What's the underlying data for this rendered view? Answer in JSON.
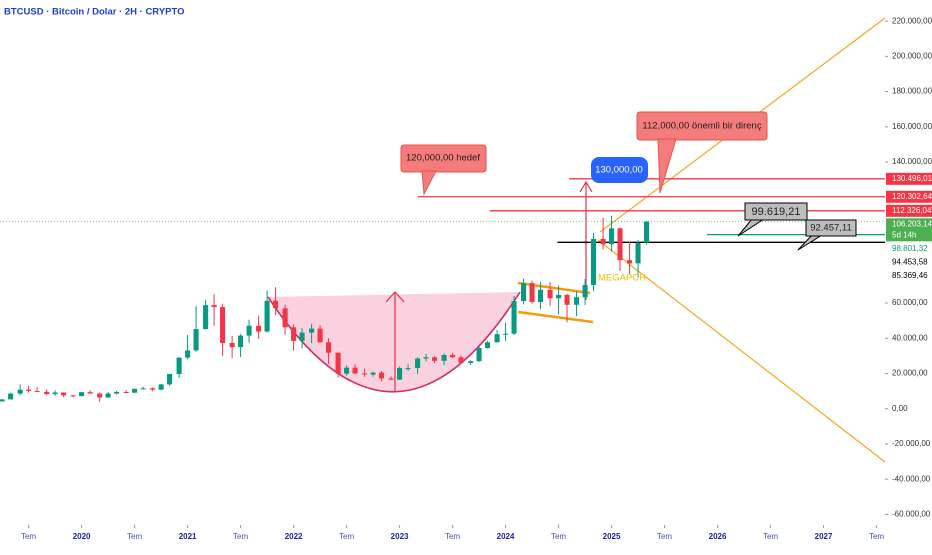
{
  "chart_data": {
    "type": "candlestick",
    "title": "BTCUSD · Bitcoin / Dolar · 2H · CRYPTO",
    "up_color": "#089981",
    "down_color": "#f23645",
    "x": [
      2019.25,
      2019.33,
      2019.42,
      2019.5,
      2019.58,
      2019.67,
      2019.75,
      2019.83,
      2019.92,
      2020,
      2020.08,
      2020.17,
      2020.25,
      2020.33,
      2020.42,
      2020.5,
      2020.58,
      2020.67,
      2020.75,
      2020.83,
      2020.92,
      2021,
      2021.08,
      2021.17,
      2021.25,
      2021.33,
      2021.42,
      2021.5,
      2021.58,
      2021.67,
      2021.75,
      2021.83,
      2021.92,
      2022,
      2022.08,
      2022.17,
      2022.25,
      2022.33,
      2022.42,
      2022.5,
      2022.58,
      2022.67,
      2022.75,
      2022.83,
      2022.92,
      2023,
      2023.08,
      2023.17,
      2023.25,
      2023.33,
      2023.42,
      2023.5,
      2023.58,
      2023.67,
      2023.75,
      2023.83,
      2023.92,
      2024,
      2024.08,
      2024.17,
      2024.25,
      2024.33,
      2024.42,
      2024.5,
      2024.58,
      2024.67,
      2024.75,
      2024.83,
      2024.92,
      2025,
      2025.08,
      2025.17,
      2025.25,
      2025.33
    ],
    "open": [
      4100,
      5300,
      8600,
      10800,
      10100,
      9600,
      8300,
      9200,
      7600,
      7200,
      9400,
      8600,
      6400,
      8600,
      9500,
      9100,
      11300,
      11600,
      10800,
      13800,
      19700,
      29000,
      33100,
      45200,
      58800,
      57700,
      37300,
      35000,
      41500,
      47100,
      43800,
      61300,
      57000,
      46200,
      38500,
      43200,
      45500,
      37700,
      31800,
      19900,
      23300,
      20000,
      19400,
      20500,
      17200,
      16500,
      23100,
      23100,
      28500,
      29200,
      27200,
      30500,
      29200,
      26000,
      27000,
      34500,
      37700,
      42300,
      42600,
      61100,
      71300,
      60600,
      67500,
      62700,
      64600,
      59000,
      63300,
      70200,
      96400,
      93400,
      102400,
      84300,
      82500,
      94200
    ],
    "high": [
      5600,
      9000,
      13800,
      13100,
      12300,
      10900,
      10400,
      9300,
      7700,
      9600,
      10500,
      9200,
      9500,
      10100,
      10400,
      11400,
      12500,
      12100,
      14100,
      19900,
      29300,
      41900,
      58300,
      61800,
      64900,
      59600,
      41300,
      42400,
      50500,
      52900,
      67000,
      69000,
      59100,
      47900,
      45800,
      48200,
      47400,
      40000,
      31900,
      24600,
      25200,
      22800,
      21000,
      21400,
      18400,
      23900,
      25200,
      29200,
      31000,
      29800,
      31400,
      31800,
      30200,
      27500,
      35200,
      38400,
      44700,
      48900,
      64000,
      73800,
      72700,
      72000,
      71900,
      70000,
      65100,
      66500,
      73600,
      99800,
      108300,
      109600,
      102800,
      95000,
      95700,
      106500
    ],
    "low": [
      4100,
      5300,
      7500,
      9100,
      9400,
      7700,
      7300,
      6500,
      6400,
      6900,
      8500,
      3900,
      6200,
      8100,
      8900,
      8900,
      11000,
      9900,
      10400,
      13200,
      17600,
      28100,
      32300,
      45000,
      47000,
      30000,
      28800,
      29300,
      37400,
      39600,
      43300,
      53300,
      42000,
      32900,
      34300,
      37200,
      37600,
      25400,
      17600,
      18800,
      19600,
      18100,
      18200,
      15500,
      16300,
      16500,
      21400,
      19600,
      26900,
      25900,
      24800,
      28900,
      25300,
      24900,
      26600,
      34100,
      37600,
      38500,
      41900,
      59200,
      59600,
      56500,
      58400,
      53500,
      49000,
      52600,
      58900,
      66800,
      90500,
      89200,
      78200,
      76600,
      74400,
      93300
    ],
    "close": [
      5300,
      8600,
      10800,
      10100,
      9600,
      8300,
      9200,
      7600,
      7200,
      9400,
      8600,
      6400,
      8600,
      9500,
      9100,
      11300,
      11600,
      10800,
      13800,
      19700,
      29000,
      33100,
      45200,
      58800,
      57700,
      37300,
      35000,
      41500,
      47100,
      43800,
      61300,
      57000,
      46200,
      38500,
      43200,
      45500,
      37700,
      31800,
      19900,
      23300,
      20000,
      19400,
      20500,
      17200,
      16500,
      23100,
      23100,
      28500,
      29200,
      27200,
      30500,
      29200,
      26000,
      27000,
      34500,
      37700,
      42300,
      42600,
      61100,
      71300,
      60600,
      67500,
      62700,
      64600,
      59000,
      63300,
      70200,
      96400,
      93400,
      102400,
      84300,
      82500,
      94200,
      106200
    ],
    "xlim": [
      2019.23,
      2027.58
    ],
    "ylim": [
      -66000,
      232000
    ],
    "xticks": [
      {
        "value": 2019.5,
        "label": "Tem"
      },
      2020,
      {
        "value": 2020.5,
        "label": "Tem"
      },
      2021,
      {
        "value": 2021.5,
        "label": "Tem"
      },
      2022,
      {
        "value": 2022.5,
        "label": "Tem"
      },
      2023,
      {
        "value": 2023.5,
        "label": "Tem"
      },
      2024,
      {
        "value": 2024.5,
        "label": "Tem"
      },
      2025,
      {
        "value": 2025.5,
        "label": "Tem"
      },
      2026,
      {
        "value": 2026.5,
        "label": "Tem"
      },
      2027,
      {
        "value": 2027.5,
        "label": "Tem"
      }
    ],
    "yticks": [
      {
        "value": 220000,
        "label": "220.000,00"
      },
      {
        "value": 200000,
        "label": "200.000,00"
      },
      {
        "value": 180000,
        "label": "180.000,00"
      },
      {
        "value": 160000,
        "label": "160.000,00"
      },
      {
        "value": 140000,
        "label": "140.000,00"
      },
      {
        "value": 60000,
        "label": "60.000,00"
      },
      {
        "value": 40000,
        "label": "40.000,00"
      },
      {
        "value": 20000,
        "label": "20.000,00"
      },
      {
        "value": 0,
        "label": "0,00"
      },
      {
        "value": -20000,
        "label": "-20.000,00"
      },
      {
        "value": -40000,
        "label": "-40.000,00"
      },
      {
        "value": -60000,
        "label": "-60.000,00"
      }
    ],
    "grid": false,
    "levels": [
      {
        "value": 130496.01,
        "label": "130.496,01",
        "color": "#f23645",
        "badge": "filled",
        "from": 2024.6
      },
      {
        "value": 120302.64,
        "label": "120.302,64",
        "color": "#f23645",
        "badge": "filled",
        "from": 2023.17
      },
      {
        "value": 112326.04,
        "label": "112.326,04",
        "color": "#f23645",
        "badge": "filled",
        "from": 2023.85
      },
      {
        "value": 106203.14,
        "label": "106.203,14",
        "color": "#4caf50",
        "badge": "filled",
        "from": 2019.23,
        "countdown": "5d 14h",
        "dotted": true
      },
      {
        "value": 98801.32,
        "label": "98.801,32",
        "color": "#089981",
        "badge": "text",
        "from": 2025.9
      },
      {
        "value": 94453.58,
        "label": "94.453,58",
        "color": "#000000",
        "badge": "text",
        "from": 2024.49
      },
      {
        "value": 85369.46,
        "label": "85.369,46",
        "color": "#000000",
        "badge": "text"
      }
    ],
    "annotations": [
      "120,000,00 hedef",
      "130,000,00",
      "112,000,00 önemli bir direnç",
      "99.619,21",
      "92.457,11",
      "MEGAPCH"
    ]
  }
}
